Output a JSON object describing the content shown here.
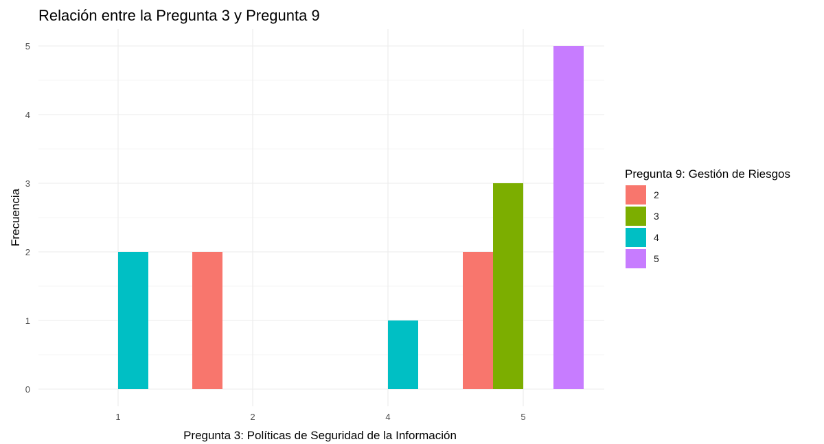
{
  "chart_data": {
    "type": "bar",
    "title": "Relación entre la Pregunta 3 y Pregunta 9",
    "xlabel": "Pregunta 3: Políticas de Seguridad de la Información",
    "ylabel": "Frecuencia",
    "categories": [
      "1",
      "2",
      "4",
      "5"
    ],
    "ylim": [
      0,
      5
    ],
    "y_ticks": [
      "0",
      "1",
      "2",
      "3",
      "4",
      "5"
    ],
    "grid": true,
    "legend": {
      "title": "Pregunta 9: Gestión de Riesgos",
      "position": "right"
    },
    "series": [
      {
        "name": "2",
        "color": "#F8766D",
        "values": [
          0,
          2,
          0,
          2
        ]
      },
      {
        "name": "3",
        "color": "#7CAE00",
        "values": [
          0,
          0,
          0,
          3
        ]
      },
      {
        "name": "4",
        "color": "#00BFC4",
        "values": [
          2,
          0,
          1,
          0
        ]
      },
      {
        "name": "5",
        "color": "#C77CFF",
        "values": [
          0,
          0,
          0,
          5
        ]
      }
    ]
  }
}
